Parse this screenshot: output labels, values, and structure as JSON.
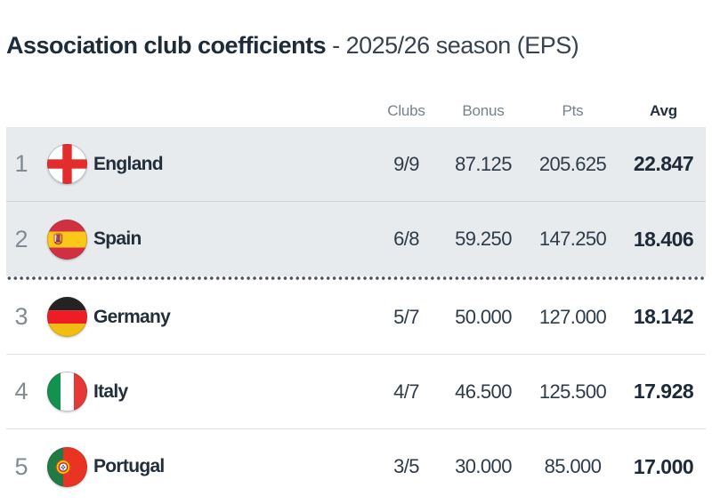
{
  "title": {
    "main": "Association club coefficients",
    "separator": " - ",
    "season": "2025/26 season (EPS)"
  },
  "table": {
    "columns": {
      "clubs": "Clubs",
      "bonus": "Bonus",
      "pts": "Pts",
      "avg": "Avg"
    },
    "rows": [
      {
        "rank": "1",
        "country": "England",
        "flag_icon": "england-flag",
        "clubs": "9/9",
        "bonus": "87.125",
        "pts": "205.625",
        "avg": "22.847",
        "highlighted": true
      },
      {
        "rank": "2",
        "country": "Spain",
        "flag_icon": "spain-flag",
        "clubs": "6/8",
        "bonus": "59.250",
        "pts": "147.250",
        "avg": "18.406",
        "highlighted": true
      },
      {
        "rank": "3",
        "country": "Germany",
        "flag_icon": "germany-flag",
        "clubs": "5/7",
        "bonus": "50.000",
        "pts": "127.000",
        "avg": "18.142",
        "highlighted": false
      },
      {
        "rank": "4",
        "country": "Italy",
        "flag_icon": "italy-flag",
        "clubs": "4/7",
        "bonus": "46.500",
        "pts": "125.500",
        "avg": "17.928",
        "highlighted": false
      },
      {
        "rank": "5",
        "country": "Portugal",
        "flag_icon": "portugal-flag",
        "clubs": "3/5",
        "bonus": "30.000",
        "pts": "85.000",
        "avg": "17.000",
        "highlighted": false
      }
    ],
    "qualification_separator_after_rank": "2"
  },
  "colors": {
    "highlight_row_background": "#e8ebee",
    "heading_text": "#1e2b39",
    "muted_text": "#76828c",
    "value_text": "#2e3b49",
    "dotted_separator": "#49525b"
  }
}
